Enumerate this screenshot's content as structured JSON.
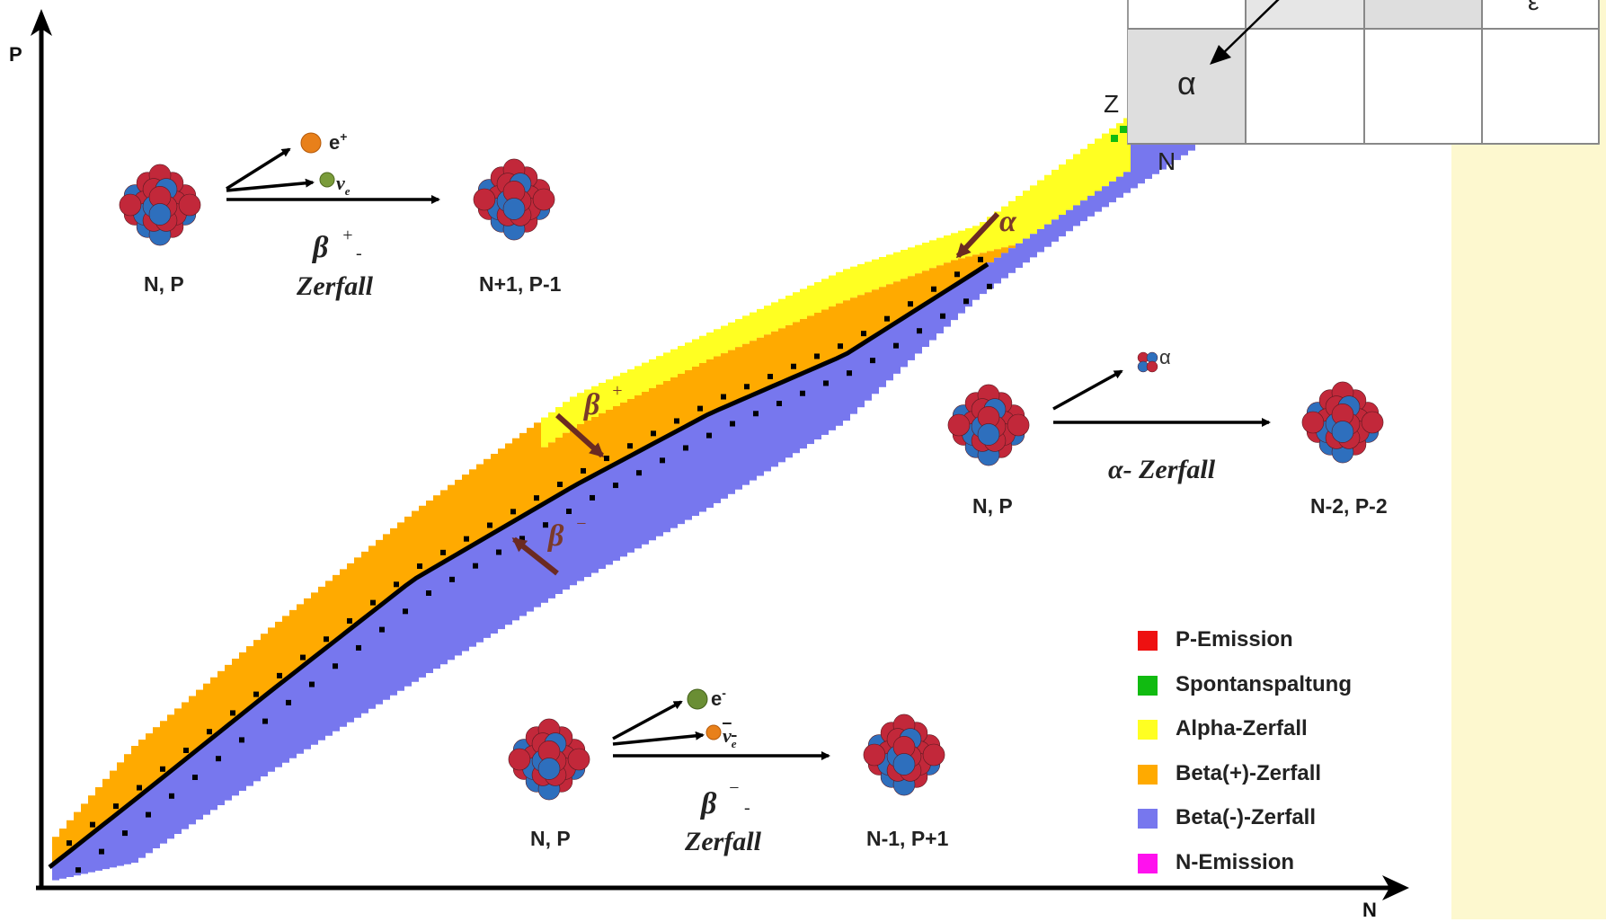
{
  "axes": {
    "x_label": "N",
    "y_label": "P"
  },
  "decays": {
    "beta_plus": {
      "from": "N, P",
      "to": "N+1, P-1",
      "symbol": "β",
      "symbol_sup": "+",
      "dash": "-",
      "word": "Zerfall",
      "particles": [
        "e",
        "ν"
      ],
      "particle_sups": [
        "+",
        ""
      ],
      "particle_subs": [
        "",
        "e"
      ]
    },
    "alpha": {
      "from": "N, P",
      "to": "N-2, P-2",
      "label": "α- Zerfall",
      "particle": "α"
    },
    "beta_minus": {
      "from": "N, P",
      "to": "N-1, P+1",
      "symbol": "β",
      "symbol_sup": "−",
      "dash": "-",
      "word": "Zerfall",
      "particles": [
        "e",
        "ν"
      ],
      "particle_sups": [
        "-",
        ""
      ],
      "particle_subs": [
        "",
        "e"
      ]
    }
  },
  "arrow_labels": {
    "alpha": "α",
    "beta_plus": "β",
    "beta_plus_sup": "+",
    "beta_minus": "β",
    "beta_minus_sup": "−"
  },
  "legend": [
    {
      "label": "P-Emission",
      "color": "#ee1111"
    },
    {
      "label": "Spontanspaltung",
      "color": "#11bb11"
    },
    {
      "label": "Alpha-Zerfall",
      "color": "#ffff22"
    },
    {
      "label": "Beta(+)-Zerfall",
      "color": "#ffaa00"
    },
    {
      "label": "Beta(-)-Zerfall",
      "color": "#7777ee"
    },
    {
      "label": "N-Emission",
      "color": "#ff11ee"
    }
  ],
  "inset": {
    "cell_symbol": "α",
    "z_label": "Z",
    "n_label": "N",
    "corner_symbol": "ε"
  },
  "colors": {
    "proton": "#c2283a",
    "neutron": "#2e6fbd",
    "arrow_brown": "#6b2a22",
    "panel": "#fdf8cf"
  }
}
